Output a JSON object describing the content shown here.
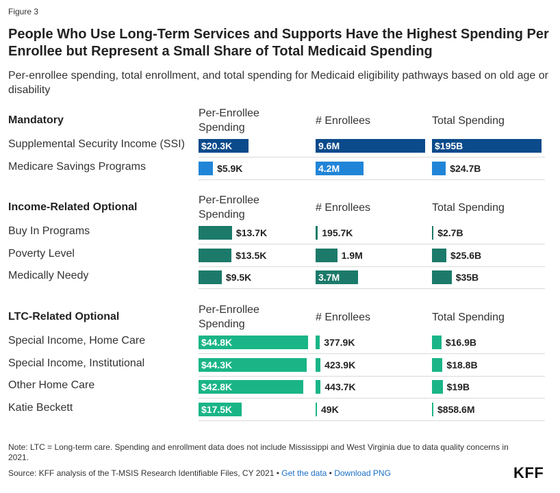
{
  "header": {
    "figure_label": "Figure 3",
    "title": "People Who Use Long-Term Services and Supports Have the Highest Spending Per Enrollee but Represent a Small Share of Total Medicaid Spending",
    "subtitle": "Per-enrollee spending, total enrollment, and total spending for Medicaid eligibility pathways based on old age or disability"
  },
  "footer": {
    "note": "Note: LTC = Long-term care. Spending and enrollment data does not include Mississippi and West Virginia due to data quality concerns in 2021.",
    "source_prefix": "Source: KFF analysis of the T-MSIS Research Identifiable Files, CY 2021 • ",
    "get_data_link": "Get the data",
    "separator": " • ",
    "download_link": "Download PNG",
    "logo": "KFF"
  },
  "chart_data": {
    "type": "table",
    "columns": [
      "Per-Enrollee Spending",
      "# Enrollees",
      "Total Spending"
    ],
    "groups": [
      {
        "name": "Mandatory",
        "color": "#0b4a8b",
        "rows": [
          {
            "label": "Supplemental Security Income (SSI)",
            "values": [
              20.3,
              9.6,
              195
            ],
            "display": [
              "$20.3K",
              "9.6M",
              "$195B"
            ],
            "color": "#0b4a8b"
          },
          {
            "label": "Medicare Savings Programs",
            "values": [
              5.9,
              4.2,
              24.7
            ],
            "display": [
              "$5.9K",
              "4.2M",
              "$24.7B"
            ],
            "color": "#2185d7"
          }
        ]
      },
      {
        "name": "Income-Related Optional",
        "color": "#1c7a6a",
        "rows": [
          {
            "label": "Buy In Programs",
            "values": [
              13.7,
              0.1957,
              2.7
            ],
            "display": [
              "$13.7K",
              "195.7K",
              "$2.7B"
            ],
            "color": "#1c7a6a"
          },
          {
            "label": "Poverty Level",
            "values": [
              13.5,
              1.9,
              25.6
            ],
            "display": [
              "$13.5K",
              "1.9M",
              "$25.6B"
            ],
            "color": "#1c7a6a"
          },
          {
            "label": "Medically Needy",
            "values": [
              9.5,
              3.7,
              35
            ],
            "display": [
              "$9.5K",
              "3.7M",
              "$35B"
            ],
            "color": "#1c7a6a"
          }
        ]
      },
      {
        "name": "LTC-Related Optional",
        "color": "#1ab587",
        "rows": [
          {
            "label": "Special Income, Home Care",
            "values": [
              44.8,
              0.3779,
              16.9
            ],
            "display": [
              "$44.8K",
              "377.9K",
              "$16.9B"
            ],
            "color": "#1ab587"
          },
          {
            "label": "Special Income, Institutional",
            "values": [
              44.3,
              0.4239,
              18.8
            ],
            "display": [
              "$44.3K",
              "423.9K",
              "$18.8B"
            ],
            "color": "#1ab587"
          },
          {
            "label": "Other Home Care",
            "values": [
              42.8,
              0.4437,
              19
            ],
            "display": [
              "$42.8K",
              "443.7K",
              "$19B"
            ],
            "color": "#1ab587"
          },
          {
            "label": "Katie Beckett",
            "values": [
              17.5,
              0.049,
              0.8586
            ],
            "display": [
              "$17.5K",
              "49K",
              "$858.6M"
            ],
            "color": "#1ab587"
          }
        ]
      }
    ],
    "column_max": [
      44.8,
      9.6,
      195
    ],
    "units": [
      "thousands of dollars",
      "millions of enrollees",
      "billions of dollars"
    ]
  }
}
